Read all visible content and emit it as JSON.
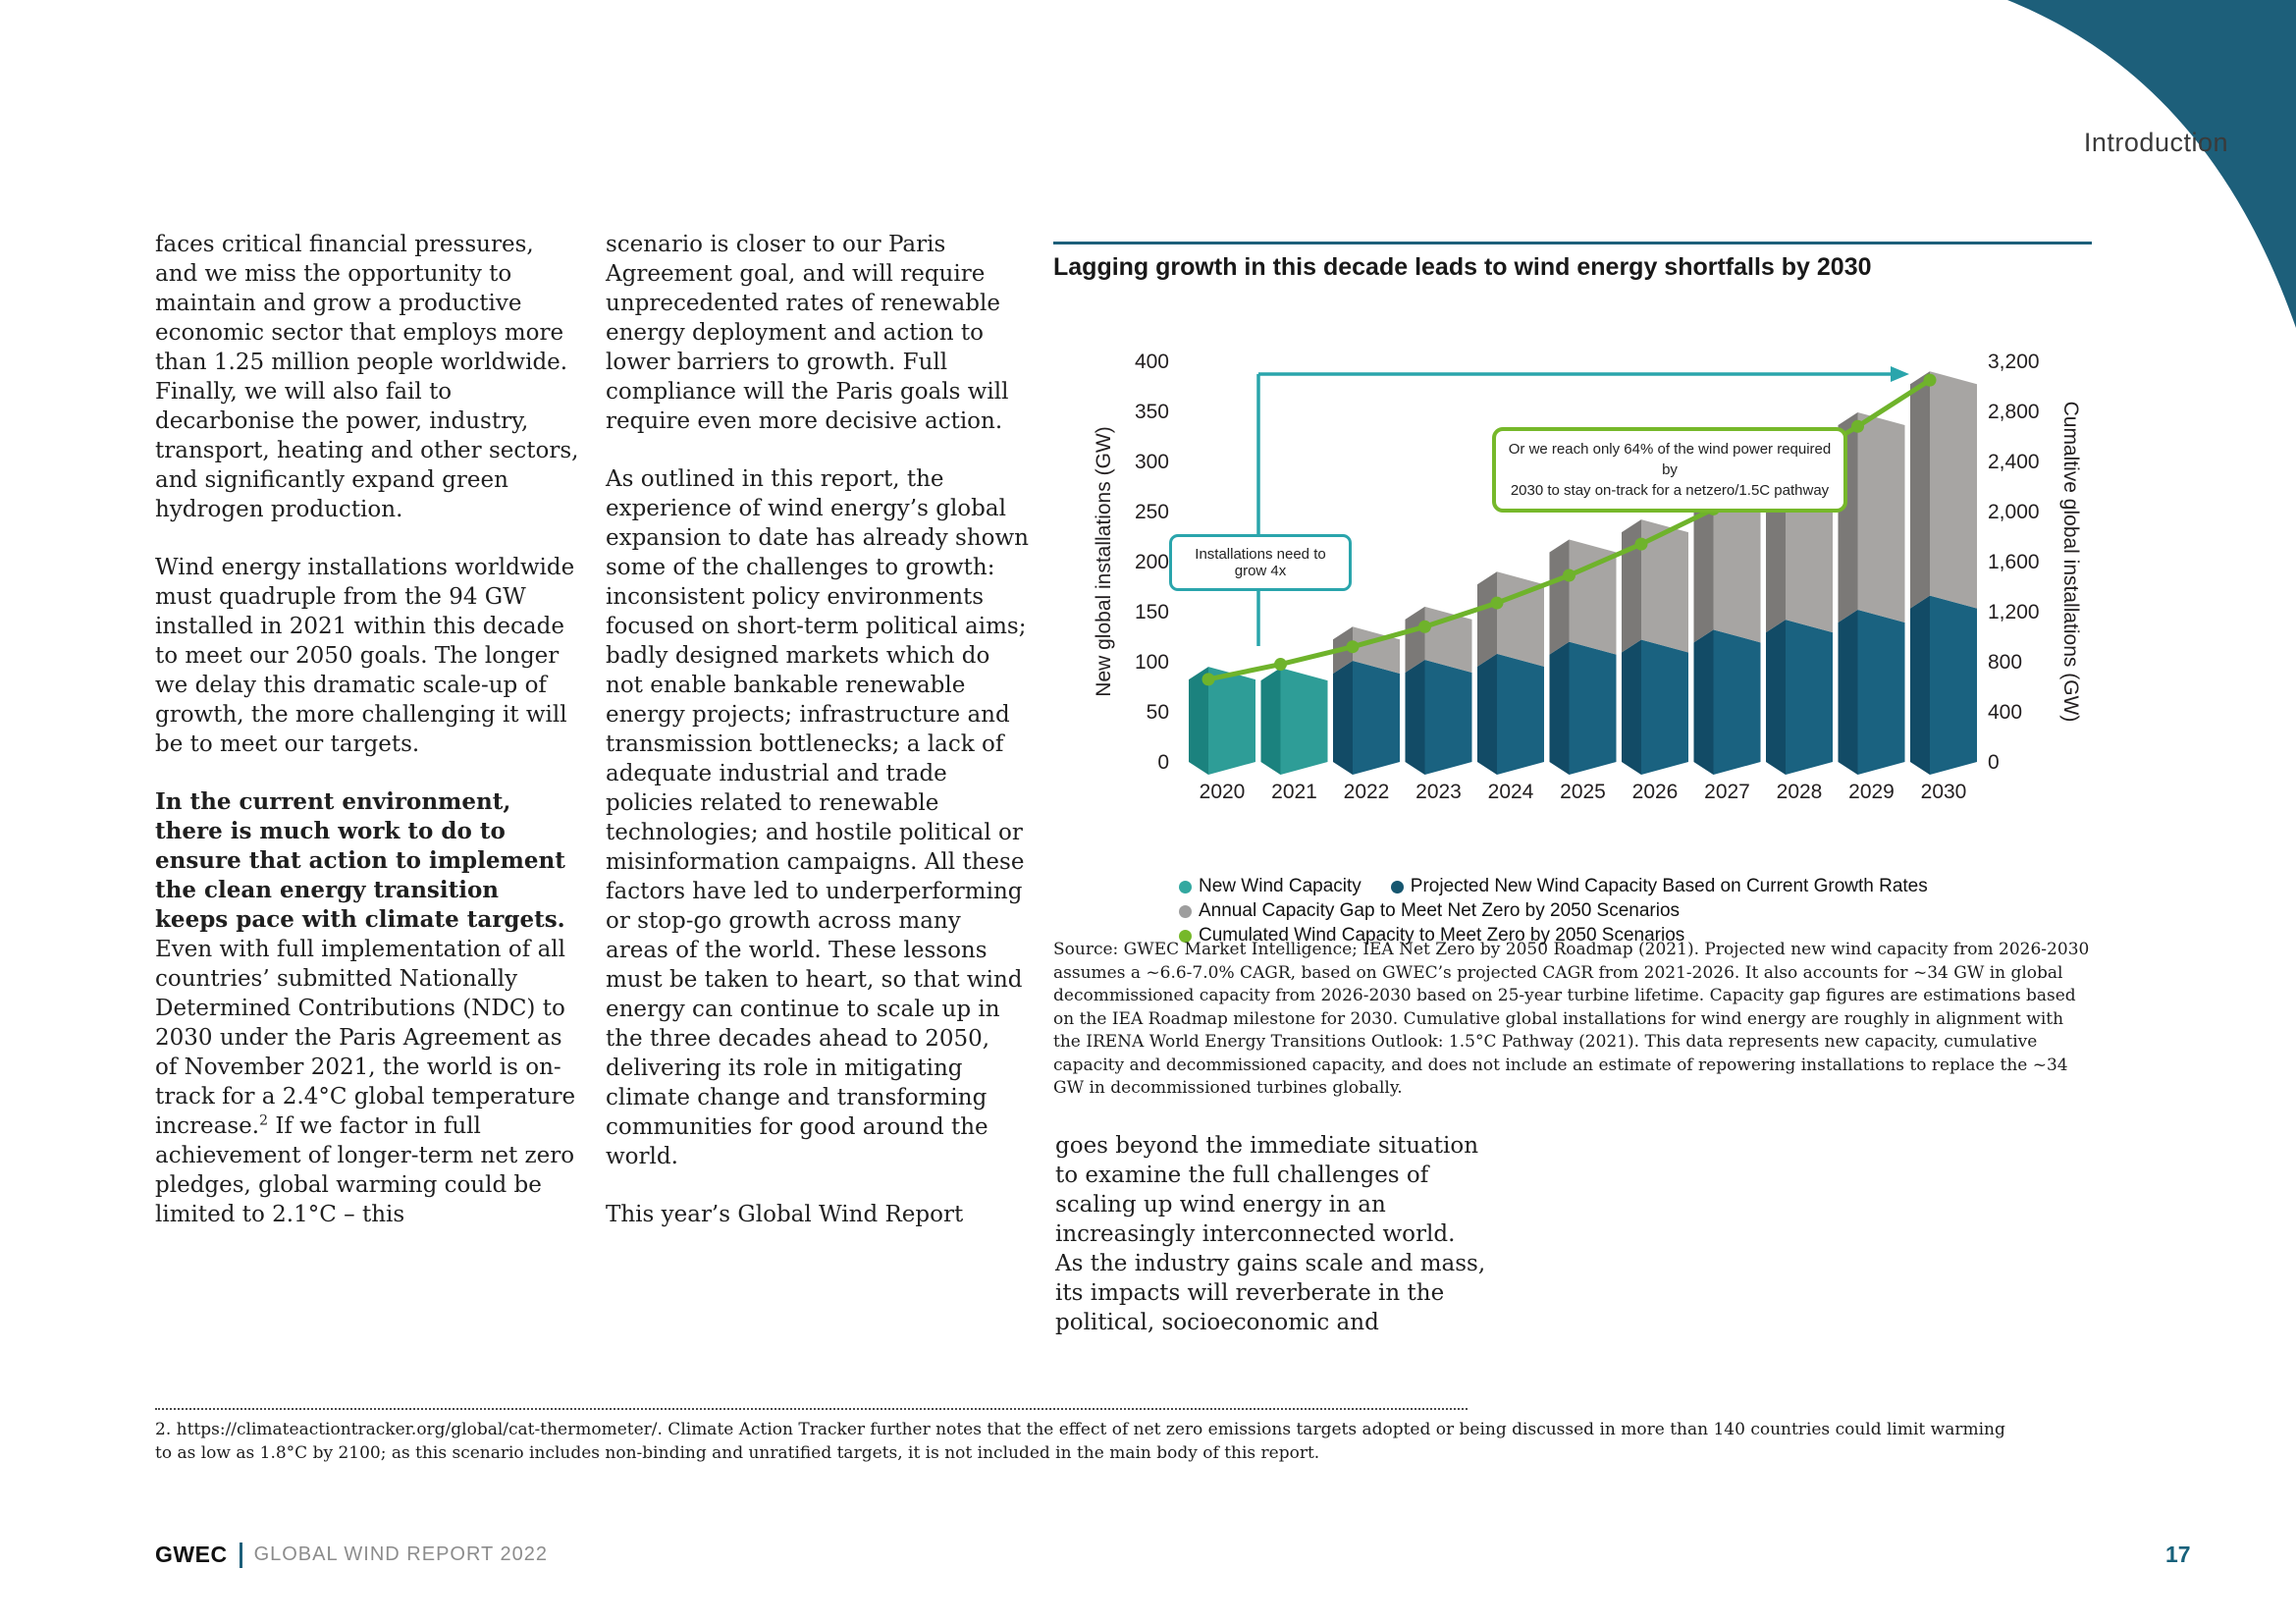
{
  "page": {
    "section_label": "Introduction",
    "page_number": "17",
    "footer": {
      "brand": "GWEC",
      "report": "GLOBAL WIND REPORT 2022"
    },
    "footnote": "2. https://climateactiontracker.org/global/cat-thermometer/. Climate Action Tracker further notes that the effect of net zero emissions targets adopted or being discussed in more than 140 countries could limit warming to as low as 1.8°C by 2100; as this scenario includes non-binding and unratified targets, it is not included in the main body of this report.",
    "accent_teal_dark": "#1d5f7a",
    "accent_teal_bright": "#2aa5ac",
    "accent_green": "#76b82a"
  },
  "columns": {
    "col1": {
      "p1": "faces critical financial pressures, and we miss the opportunity to maintain and grow a productive economic sector that employs more than 1.25 million people worldwide. Finally, we will also fail to decarbonise the power, industry, transport, heating and other sectors, and significantly expand green hydrogen production.",
      "p2": "Wind energy installations worldwide must quadruple from the 94 GW installed in 2021 within this decade to meet our 2050 goals. The longer we delay this dramatic scale-up of growth, the more challenging it will be to meet our targets.",
      "p3_bold": "In the current environment, there is much work to do to ensure that action to implement the clean energy transition keeps pace with climate targets.",
      "p3_a": " Even with full implementation of all countries’ submitted Nationally Determined Contributions (NDC) to 2030 under the Paris Agreement as of November 2021, the world is on-track for a 2.4°C global temperature increase.",
      "p3_sup": "2",
      "p3_b": " If we factor in full achievement of longer-term net zero pledges, global warming could be limited to 2.1°C – this"
    },
    "col2": {
      "p1": "scenario is closer to our Paris Agreement goal, and will require unprecedented rates of renewable energy deployment and action to lower barriers to growth. Full compliance will the Paris goals will require even more decisive action.",
      "p2": "As outlined in this report, the experience of wind energy’s global expansion to date has already shown some of the challenges to growth: inconsistent policy environments focused on short-term political aims; badly designed markets which do not enable bankable renewable energy projects; infrastructure and transmission bottlenecks; a lack of adequate industrial and trade policies related to renewable technologies; and hostile political or misinformation campaigns. All these factors have led to underperforming or stop-go growth across many areas of the world. These lessons must be taken to heart, so that wind energy can continue to scale up in the three decades ahead to 2050, delivering its role in mitigating climate change and transforming communities for good around the world.",
      "p3": "This year’s Global Wind Report"
    },
    "col3": {
      "p1": "goes beyond the immediate situation to examine the full challenges of scaling up wind energy in an increasingly interconnected world. As the industry gains scale and mass, its impacts will reverberate in the political, socioeconomic and"
    }
  },
  "chart": {
    "title": "Lagging growth in this decade leads to wind energy shortfalls by 2030",
    "annotations": {
      "grow4x": "Installations need to grow 4x",
      "reach64_line1": "Or we reach only 64% of the wind power required by",
      "reach64_line2": "2030 to stay on-track for a netzero/1.5C pathway"
    },
    "source": "Source: GWEC Market Intelligence; IEA Net Zero by 2050 Roadmap (2021). Projected new wind capacity from 2026-2030 assumes a ~6.6-7.0% CAGR, based on GWEC’s projected CAGR from 2021-2026. It also accounts for ~34 GW in global decommissioned capacity from 2026-2030 based on 25-year turbine lifetime. Capacity gap figures are estimations based on the IEA Roadmap milestone for 2030. Cumulative global installations for wind energy are roughly in alignment with the IRENA World Energy Transitions Outlook: 1.5°C Pathway (2021). This data represents new capacity, cumulative capacity and decommissioned capacity, and does not include an estimate of repowering installations to replace the ~34 GW in decommissioned turbines globally."
  },
  "chart_data": {
    "type": "bar",
    "subtype": "3d-stacked-bars-with-cumulative-line",
    "title": "Lagging growth in this decade leads to wind energy shortfalls by 2030",
    "categories": [
      "2020",
      "2021",
      "2022",
      "2023",
      "2024",
      "2025",
      "2026",
      "2027",
      "2028",
      "2029",
      "2030"
    ],
    "series": [
      {
        "name": "New Wind Capacity",
        "kind": "bar",
        "axis": "left",
        "values": [
          95,
          94,
          null,
          null,
          null,
          null,
          null,
          null,
          null,
          null,
          null
        ],
        "color_front": "#1b827e",
        "color_side": "#2e9d97",
        "legend_color": "#33a8a0"
      },
      {
        "name": "Projected New Wind Capacity Based on Current Growth Rates",
        "kind": "bar",
        "axis": "left",
        "values": [
          null,
          null,
          101,
          102,
          108,
          120,
          122,
          132,
          142,
          152,
          166
        ],
        "color_front": "#124b66",
        "color_side": "#1a6280",
        "legend_color": "#16566f"
      },
      {
        "name": "Annual Capacity Gap to Meet Net Zero by 2050 Scenarios",
        "kind": "bar-stacked-on-previous",
        "axis": "left",
        "values": [
          null,
          null,
          34,
          53,
          82,
          102,
          120,
          149,
          180,
          197,
          224
        ],
        "color_front": "#7b7977",
        "color_side": "#a7a5a3",
        "legend_color": "#9e9e9e"
      },
      {
        "name": "Cumulated Wind Capacity to Meet Zero by 2050 Scenarios",
        "kind": "line",
        "axis": "right",
        "values": [
          660,
          780,
          920,
          1080,
          1270,
          1490,
          1740,
          2020,
          2340,
          2680,
          3050
        ],
        "color": "#6fb32b",
        "legend_color": "#76b82a"
      }
    ],
    "left_axis": {
      "label": "New global installations (GW)",
      "min": 0,
      "max": 400,
      "step": 50
    },
    "right_axis": {
      "label": "Cumaltive global installations (GW)",
      "min": 0,
      "max": 3200,
      "step": 400
    },
    "legend_position": "bottom",
    "grid": false,
    "annotation_arrow_color": "#2aa5ac"
  }
}
